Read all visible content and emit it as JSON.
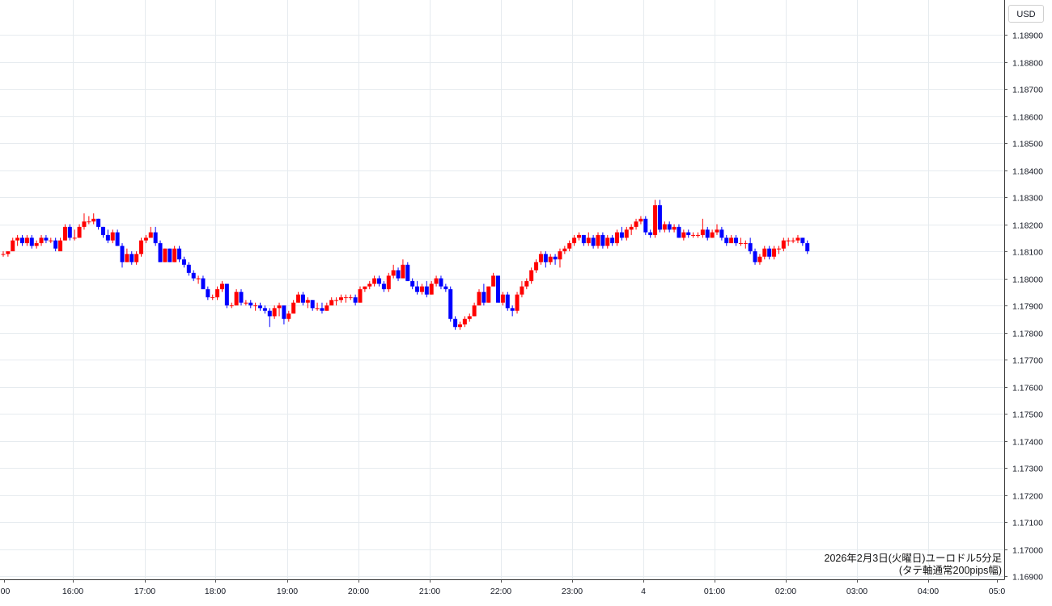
{
  "chart_data": {
    "type": "candlestick",
    "title": "2026年2月3日(火曜日)ユーロドル5分足",
    "subtitle": "(タテ軸通常200pips幅)",
    "currency": "USD",
    "ylim": [
      1.1686,
      1.1904
    ],
    "y_ticks": [
      "1.18900",
      "1.18800",
      "1.18700",
      "1.18600",
      "1.18500",
      "1.18400",
      "1.18300",
      "1.18200",
      "1.18100",
      "1.18000",
      "1.17900",
      "1.17800",
      "1.17700",
      "1.17600",
      "1.17500",
      "1.17400",
      "1.17300",
      "1.17200",
      "1.17100",
      "1.17000",
      "1.16900"
    ],
    "x_labels": [
      ":00",
      "16:00",
      "17:00",
      "18:00",
      "19:00",
      "20:00",
      "21:00",
      "22:00",
      "23:00",
      "4",
      "01:00",
      "02:00",
      "03:00",
      "04:00",
      "05:0"
    ],
    "grid": true,
    "up_color": "#ff0000",
    "down_color": "#0000ff",
    "candles": [
      [
        1.1809,
        1.181,
        1.1808,
        1.1809
      ],
      [
        1.1809,
        1.181,
        1.1808,
        1.181
      ],
      [
        1.181,
        1.1815,
        1.181,
        1.1814
      ],
      [
        1.1814,
        1.1816,
        1.1812,
        1.1815
      ],
      [
        1.1815,
        1.1816,
        1.1812,
        1.1813
      ],
      [
        1.1813,
        1.1816,
        1.1812,
        1.1815
      ],
      [
        1.1815,
        1.1816,
        1.1811,
        1.1812
      ],
      [
        1.1812,
        1.1814,
        1.1811,
        1.1813
      ],
      [
        1.1813,
        1.1816,
        1.1812,
        1.1815
      ],
      [
        1.1815,
        1.1816,
        1.1813,
        1.1814
      ],
      [
        1.1814,
        1.1815,
        1.1813,
        1.1814
      ],
      [
        1.1814,
        1.1815,
        1.181,
        1.1811
      ],
      [
        1.181,
        1.1815,
        1.181,
        1.1814
      ],
      [
        1.1814,
        1.182,
        1.1814,
        1.1819
      ],
      [
        1.1819,
        1.182,
        1.1814,
        1.1815
      ],
      [
        1.1815,
        1.1818,
        1.1814,
        1.1815
      ],
      [
        1.1815,
        1.182,
        1.1815,
        1.1819
      ],
      [
        1.1819,
        1.1824,
        1.1818,
        1.1821
      ],
      [
        1.1821,
        1.1823,
        1.182,
        1.1821
      ],
      [
        1.1821,
        1.1824,
        1.182,
        1.1822
      ],
      [
        1.1822,
        1.1822,
        1.1818,
        1.1819
      ],
      [
        1.1819,
        1.1819,
        1.1815,
        1.1816
      ],
      [
        1.1816,
        1.1818,
        1.1813,
        1.1814
      ],
      [
        1.1814,
        1.1818,
        1.1813,
        1.1817
      ],
      [
        1.1817,
        1.1818,
        1.1812,
        1.1812
      ],
      [
        1.1812,
        1.1813,
        1.1804,
        1.1806
      ],
      [
        1.1806,
        1.1811,
        1.1806,
        1.1809
      ],
      [
        1.1809,
        1.181,
        1.1805,
        1.1806
      ],
      [
        1.1806,
        1.181,
        1.1805,
        1.1809
      ],
      [
        1.1809,
        1.1815,
        1.1808,
        1.1814
      ],
      [
        1.1814,
        1.1816,
        1.1813,
        1.1815
      ],
      [
        1.1815,
        1.1819,
        1.1815,
        1.1817
      ],
      [
        1.1817,
        1.1819,
        1.1812,
        1.1813
      ],
      [
        1.1813,
        1.1814,
        1.1806,
        1.1806
      ],
      [
        1.1806,
        1.1811,
        1.1806,
        1.1811
      ],
      [
        1.1811,
        1.1811,
        1.1806,
        1.1806
      ],
      [
        1.1806,
        1.1812,
        1.1806,
        1.1811
      ],
      [
        1.1811,
        1.1812,
        1.1806,
        1.1807
      ],
      [
        1.1807,
        1.1808,
        1.1804,
        1.1805
      ],
      [
        1.1805,
        1.1806,
        1.1801,
        1.1802
      ],
      [
        1.1802,
        1.1803,
        1.1799,
        1.18
      ],
      [
        1.18,
        1.1801,
        1.1798,
        1.18
      ],
      [
        1.18,
        1.1801,
        1.1796,
        1.1796
      ],
      [
        1.1796,
        1.1797,
        1.1792,
        1.1793
      ],
      [
        1.1793,
        1.1794,
        1.1792,
        1.1793
      ],
      [
        1.1793,
        1.1797,
        1.1792,
        1.1796
      ],
      [
        1.1796,
        1.1799,
        1.1795,
        1.1798
      ],
      [
        1.1798,
        1.1798,
        1.1789,
        1.179
      ],
      [
        1.179,
        1.1791,
        1.1789,
        1.179
      ],
      [
        1.179,
        1.1796,
        1.179,
        1.1795
      ],
      [
        1.1795,
        1.1796,
        1.179,
        1.1791
      ],
      [
        1.1791,
        1.1792,
        1.179,
        1.1791
      ],
      [
        1.1791,
        1.1792,
        1.1789,
        1.179
      ],
      [
        1.179,
        1.1791,
        1.1788,
        1.179
      ],
      [
        1.179,
        1.1791,
        1.1788,
        1.1789
      ],
      [
        1.1789,
        1.179,
        1.1787,
        1.1788
      ],
      [
        1.1788,
        1.1789,
        1.1782,
        1.1786
      ],
      [
        1.1786,
        1.179,
        1.1785,
        1.1789
      ],
      [
        1.1789,
        1.1791,
        1.1786,
        1.179
      ],
      [
        1.179,
        1.179,
        1.1783,
        1.1785
      ],
      [
        1.1785,
        1.1788,
        1.1784,
        1.1787
      ],
      [
        1.1787,
        1.1792,
        1.1787,
        1.1791
      ],
      [
        1.1791,
        1.1795,
        1.1791,
        1.1794
      ],
      [
        1.1794,
        1.1795,
        1.179,
        1.1791
      ],
      [
        1.1791,
        1.1793,
        1.1789,
        1.1792
      ],
      [
        1.1792,
        1.1792,
        1.1788,
        1.1789
      ],
      [
        1.1789,
        1.1791,
        1.1788,
        1.1789
      ],
      [
        1.1789,
        1.1791,
        1.1787,
        1.1788
      ],
      [
        1.1788,
        1.1791,
        1.1788,
        1.179
      ],
      [
        1.179,
        1.1793,
        1.179,
        1.1792
      ],
      [
        1.1792,
        1.1793,
        1.179,
        1.1792
      ],
      [
        1.1792,
        1.1794,
        1.1791,
        1.1793
      ],
      [
        1.1793,
        1.1794,
        1.1791,
        1.1793
      ],
      [
        1.1793,
        1.1794,
        1.1792,
        1.1793
      ],
      [
        1.1793,
        1.1794,
        1.179,
        1.1791
      ],
      [
        1.1791,
        1.1797,
        1.1791,
        1.1796
      ],
      [
        1.1796,
        1.1797,
        1.1795,
        1.1797
      ],
      [
        1.1797,
        1.1799,
        1.1796,
        1.1798
      ],
      [
        1.1798,
        1.1801,
        1.1797,
        1.18
      ],
      [
        1.18,
        1.1801,
        1.1797,
        1.1798
      ],
      [
        1.1798,
        1.1799,
        1.1795,
        1.1796
      ],
      [
        1.1796,
        1.1802,
        1.1795,
        1.1801
      ],
      [
        1.1801,
        1.1805,
        1.18,
        1.1803
      ],
      [
        1.1803,
        1.1804,
        1.1799,
        1.18
      ],
      [
        1.18,
        1.1807,
        1.18,
        1.1805
      ],
      [
        1.1805,
        1.1806,
        1.1799,
        1.1799
      ],
      [
        1.1799,
        1.18,
        1.1796,
        1.1797
      ],
      [
        1.1797,
        1.1799,
        1.1794,
        1.1795
      ],
      [
        1.1795,
        1.1798,
        1.1794,
        1.1797
      ],
      [
        1.1797,
        1.1799,
        1.1793,
        1.1794
      ],
      [
        1.1794,
        1.1799,
        1.1794,
        1.1798
      ],
      [
        1.1798,
        1.1801,
        1.1797,
        1.18
      ],
      [
        1.18,
        1.1801,
        1.1796,
        1.1797
      ],
      [
        1.1797,
        1.1798,
        1.1795,
        1.1796
      ],
      [
        1.1796,
        1.1797,
        1.1784,
        1.1785
      ],
      [
        1.1785,
        1.1786,
        1.1781,
        1.1782
      ],
      [
        1.1782,
        1.1784,
        1.1781,
        1.1783
      ],
      [
        1.1783,
        1.1786,
        1.1782,
        1.1785
      ],
      [
        1.1785,
        1.1787,
        1.1784,
        1.1786
      ],
      [
        1.1786,
        1.1791,
        1.1786,
        1.179
      ],
      [
        1.179,
        1.1796,
        1.179,
        1.1795
      ],
      [
        1.1795,
        1.1798,
        1.179,
        1.1791
      ],
      [
        1.1791,
        1.1797,
        1.1791,
        1.1797
      ],
      [
        1.1797,
        1.1802,
        1.1797,
        1.1801
      ],
      [
        1.1801,
        1.1801,
        1.1791,
        1.1791
      ],
      [
        1.1791,
        1.1795,
        1.179,
        1.1794
      ],
      [
        1.1794,
        1.1795,
        1.1788,
        1.1789
      ],
      [
        1.1789,
        1.179,
        1.1786,
        1.1788
      ],
      [
        1.1788,
        1.1795,
        1.1787,
        1.1794
      ],
      [
        1.1794,
        1.1799,
        1.1793,
        1.1797
      ],
      [
        1.1797,
        1.18,
        1.1796,
        1.1799
      ],
      [
        1.1799,
        1.1804,
        1.1798,
        1.1803
      ],
      [
        1.1803,
        1.1807,
        1.1802,
        1.1806
      ],
      [
        1.1806,
        1.181,
        1.1805,
        1.1809
      ],
      [
        1.1809,
        1.181,
        1.1804,
        1.1806
      ],
      [
        1.1806,
        1.1809,
        1.1805,
        1.1808
      ],
      [
        1.1808,
        1.1809,
        1.1805,
        1.1807
      ],
      [
        1.1807,
        1.1811,
        1.1804,
        1.181
      ],
      [
        1.181,
        1.1812,
        1.1809,
        1.1811
      ],
      [
        1.1811,
        1.1814,
        1.181,
        1.1813
      ],
      [
        1.1813,
        1.1816,
        1.1812,
        1.1815
      ],
      [
        1.1815,
        1.1817,
        1.1814,
        1.1816
      ],
      [
        1.1816,
        1.1816,
        1.1812,
        1.1813
      ],
      [
        1.1813,
        1.1817,
        1.1812,
        1.1815
      ],
      [
        1.1815,
        1.1816,
        1.1811,
        1.1812
      ],
      [
        1.1812,
        1.1817,
        1.1811,
        1.1816
      ],
      [
        1.1816,
        1.1817,
        1.1811,
        1.1812
      ],
      [
        1.1812,
        1.1816,
        1.1811,
        1.1815
      ],
      [
        1.1815,
        1.1816,
        1.1812,
        1.1813
      ],
      [
        1.1813,
        1.1818,
        1.1812,
        1.1817
      ],
      [
        1.1817,
        1.1819,
        1.1814,
        1.1815
      ],
      [
        1.1815,
        1.1819,
        1.1814,
        1.1818
      ],
      [
        1.1818,
        1.182,
        1.1816,
        1.1819
      ],
      [
        1.1819,
        1.1822,
        1.1818,
        1.1821
      ],
      [
        1.1821,
        1.1823,
        1.182,
        1.1822
      ],
      [
        1.1822,
        1.1823,
        1.1816,
        1.1817
      ],
      [
        1.1817,
        1.1818,
        1.1815,
        1.1816
      ],
      [
        1.1816,
        1.1829,
        1.1815,
        1.1827
      ],
      [
        1.1827,
        1.1829,
        1.1817,
        1.1818
      ],
      [
        1.1818,
        1.1821,
        1.1817,
        1.182
      ],
      [
        1.182,
        1.1821,
        1.1817,
        1.1818
      ],
      [
        1.1818,
        1.182,
        1.1817,
        1.1819
      ],
      [
        1.1819,
        1.182,
        1.1815,
        1.1815
      ],
      [
        1.1815,
        1.1818,
        1.1814,
        1.1817
      ],
      [
        1.1817,
        1.1818,
        1.1815,
        1.1816
      ],
      [
        1.1816,
        1.1817,
        1.1815,
        1.1816
      ],
      [
        1.1816,
        1.1817,
        1.1815,
        1.1816
      ],
      [
        1.1816,
        1.1822,
        1.1815,
        1.1818
      ],
      [
        1.1818,
        1.1819,
        1.1814,
        1.1815
      ],
      [
        1.1815,
        1.1818,
        1.1815,
        1.1817
      ],
      [
        1.1817,
        1.182,
        1.1816,
        1.1818
      ],
      [
        1.1818,
        1.1819,
        1.1814,
        1.1815
      ],
      [
        1.1815,
        1.1816,
        1.1812,
        1.1813
      ],
      [
        1.1813,
        1.1816,
        1.1813,
        1.1815
      ],
      [
        1.1815,
        1.1816,
        1.1812,
        1.1813
      ],
      [
        1.1813,
        1.1815,
        1.1812,
        1.1813
      ],
      [
        1.1813,
        1.1814,
        1.1811,
        1.1813
      ],
      [
        1.1813,
        1.1815,
        1.1809,
        1.181
      ],
      [
        1.181,
        1.1811,
        1.1805,
        1.1806
      ],
      [
        1.1806,
        1.1809,
        1.1805,
        1.1808
      ],
      [
        1.1808,
        1.1812,
        1.1807,
        1.1811
      ],
      [
        1.1811,
        1.1812,
        1.1807,
        1.1808
      ],
      [
        1.1808,
        1.1812,
        1.1807,
        1.1811
      ],
      [
        1.1811,
        1.1812,
        1.1809,
        1.1811
      ],
      [
        1.1811,
        1.1815,
        1.181,
        1.1814
      ],
      [
        1.1814,
        1.1815,
        1.1812,
        1.1814
      ],
      [
        1.1814,
        1.1815,
        1.1813,
        1.1814
      ],
      [
        1.1814,
        1.1816,
        1.1813,
        1.1815
      ],
      [
        1.1815,
        1.1815,
        1.1812,
        1.1813
      ],
      [
        1.1813,
        1.1814,
        1.1809,
        1.181
      ]
    ]
  }
}
